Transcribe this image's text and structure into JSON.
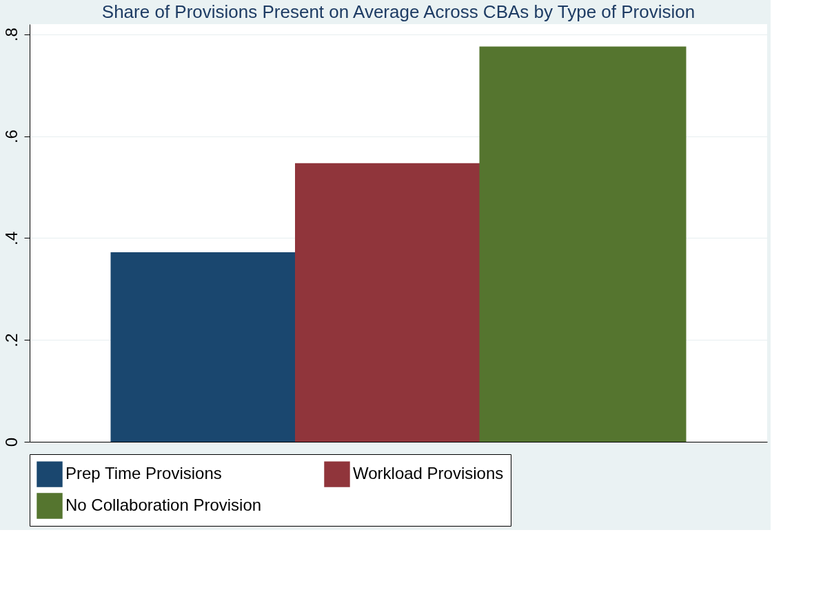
{
  "chart_data": {
    "type": "bar",
    "title": "Share of Provisions Present on Average Across CBAs by Type of Provision",
    "categories": [
      null
    ],
    "series": [
      {
        "name": "Prep Time Provisions",
        "color": "#1a476f",
        "values": [
          0.372
        ]
      },
      {
        "name": "Workload Provisions",
        "color": "#90353b",
        "values": [
          0.547
        ]
      },
      {
        "name": "No Collaboration Provision",
        "color": "#55752f",
        "values": [
          0.776
        ]
      }
    ],
    "ylim": [
      0,
      0.82
    ],
    "yticks": [
      0,
      {
        "value": 0.2,
        "label": ".2"
      },
      {
        "value": 0.4,
        "label": ".4"
      },
      {
        "value": 0.6,
        "label": ".6"
      },
      {
        "value": 0.8,
        "label": ".8"
      }
    ],
    "grid": "y",
    "legend": "bottom"
  }
}
